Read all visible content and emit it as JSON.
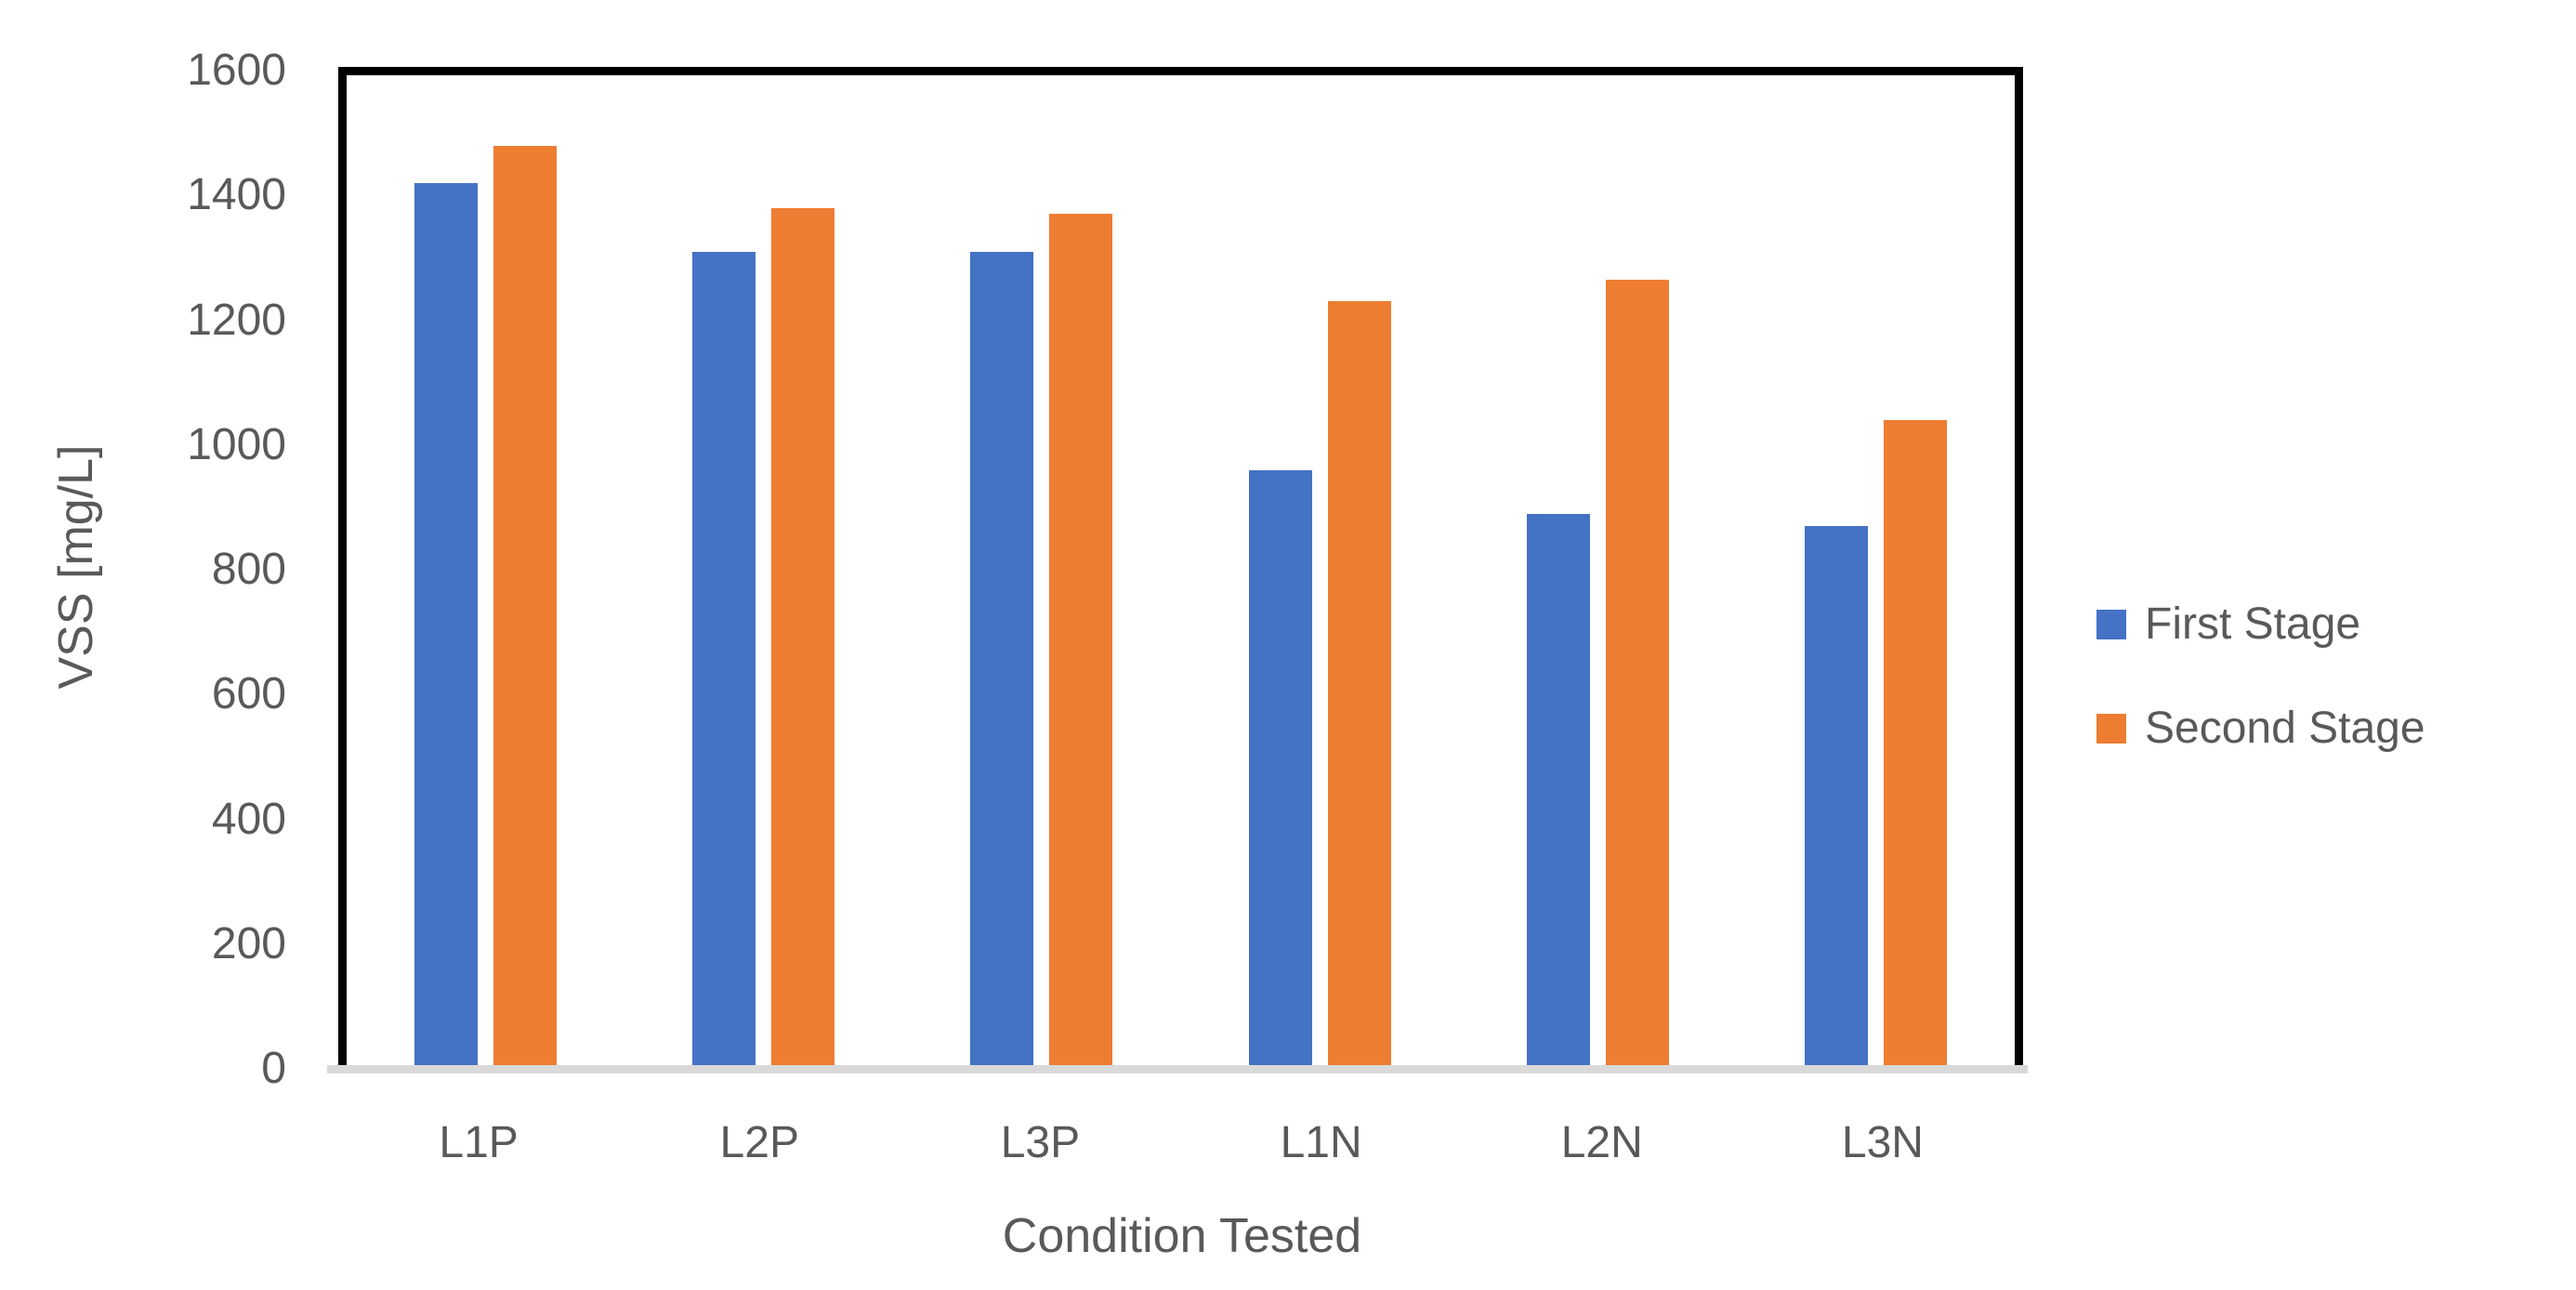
{
  "chart_data": {
    "type": "bar",
    "title": "",
    "categories": [
      "L1P",
      "L2P",
      "L3P",
      "L1N",
      "L2N",
      "L3N"
    ],
    "series": [
      {
        "name": "First Stage",
        "color": "#4472C4",
        "values": [
          1420,
          1310,
          1310,
          960,
          890,
          870
        ]
      },
      {
        "name": "Second Stage",
        "color": "#ED7D31",
        "values": [
          1480,
          1380,
          1370,
          1230,
          1265,
          1040
        ]
      }
    ],
    "xlabel": "Condition Tested",
    "ylabel": "VSS [mg/L]",
    "ylim": [
      0,
      1600
    ],
    "ytick_step": 200,
    "yticks": [
      0,
      200,
      400,
      600,
      800,
      1000,
      1200,
      1400,
      1600
    ],
    "grid": false,
    "legend_position": "right"
  },
  "colors": {
    "text": "#595959",
    "plot_border": "#000000",
    "axis_line": "#D9D9D9",
    "background": "#FFFFFF"
  }
}
